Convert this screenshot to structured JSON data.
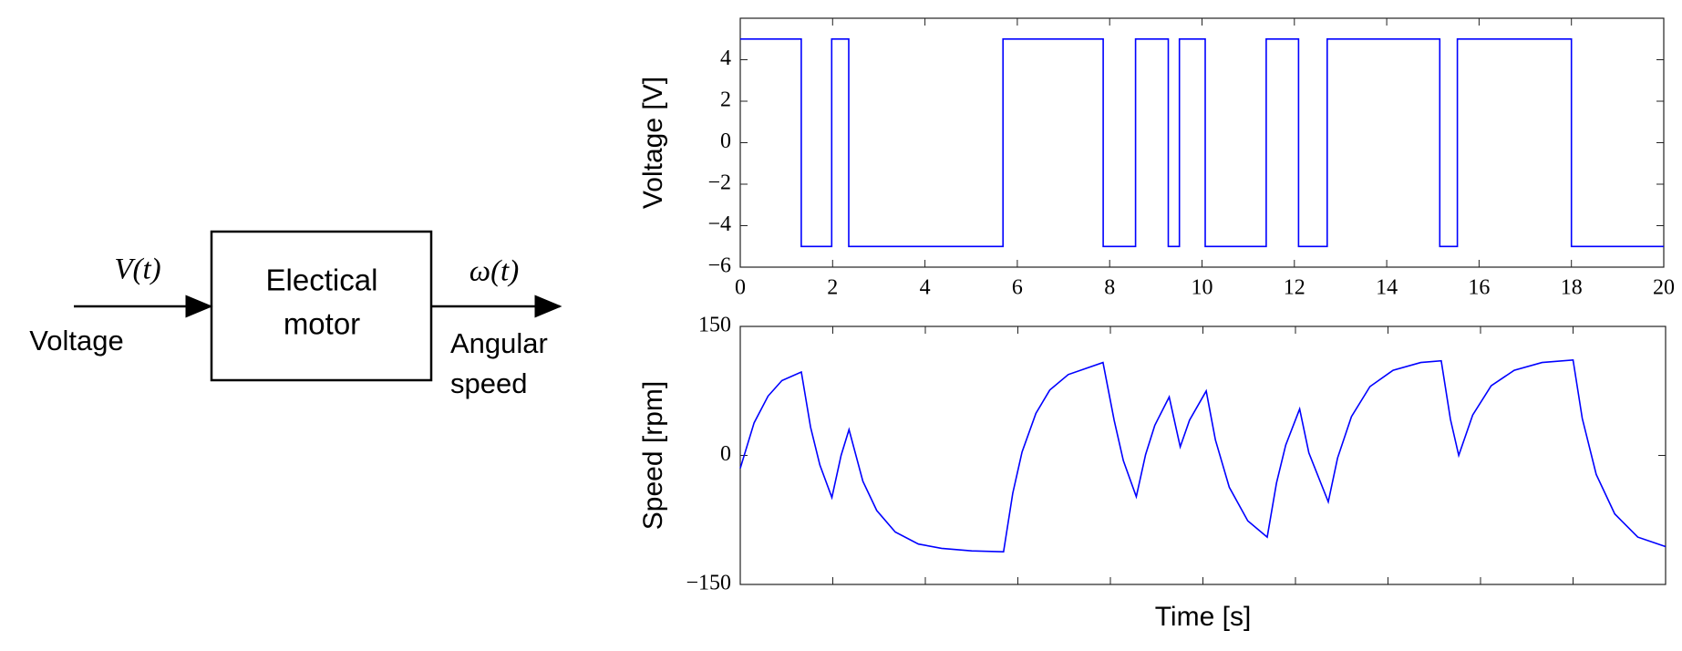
{
  "diagram": {
    "block_label": [
      "Electical",
      "motor"
    ],
    "input_signal": "V(t)",
    "input_label": "Voltage",
    "output_signal": "ω(t)",
    "output_label": [
      "Angular",
      "speed"
    ]
  },
  "chart_data": [
    {
      "type": "line",
      "ylabel": "Voltage [V]",
      "color": "#0000ff",
      "x": [
        0,
        1.32,
        1.32,
        1.98,
        1.98,
        2.35,
        2.35,
        5.69,
        5.69,
        7.86,
        7.86,
        8.56,
        8.56,
        9.27,
        9.27,
        9.51,
        9.51,
        10.07,
        10.07,
        11.39,
        11.39,
        12.09,
        12.09,
        12.71,
        12.71,
        15.15,
        15.15,
        15.53,
        15.53,
        18.0,
        18.0,
        20
      ],
      "values": [
        5,
        5,
        -5,
        -5,
        5,
        5,
        -5,
        -5,
        5,
        5,
        -5,
        -5,
        5,
        5,
        -5,
        -5,
        5,
        5,
        -5,
        -5,
        5,
        5,
        -5,
        -5,
        5,
        5,
        -5,
        -5,
        5,
        5,
        -5,
        -5
      ],
      "xlim": [
        0,
        20
      ],
      "xticks": [
        0,
        2,
        4,
        6,
        8,
        10,
        12,
        14,
        16,
        18,
        20
      ],
      "show_xtick_labels": true,
      "ylim": [
        -6,
        6
      ],
      "yticks": [
        {
          "value": -6,
          "label": "−6"
        },
        {
          "value": -4,
          "label": "−4"
        },
        {
          "value": -2,
          "label": "−2"
        },
        0,
        2,
        4
      ]
    },
    {
      "type": "line",
      "ylabel": "Speed [rpm]",
      "xlabel": "Time [s]",
      "color": "#0000ff",
      "x": [
        0,
        0.3,
        0.6,
        0.9,
        1.32,
        1.52,
        1.72,
        1.98,
        2.18,
        2.35,
        2.65,
        2.95,
        3.35,
        3.85,
        4.35,
        5.0,
        5.69,
        5.89,
        6.09,
        6.39,
        6.69,
        7.09,
        7.84,
        8.08,
        8.28,
        8.56,
        8.76,
        8.96,
        9.27,
        9.51,
        9.71,
        10.07,
        10.27,
        10.57,
        10.97,
        11.39,
        11.59,
        11.79,
        12.09,
        12.29,
        12.71,
        12.91,
        13.21,
        13.61,
        14.11,
        14.71,
        15.15,
        15.35,
        15.53,
        15.83,
        16.23,
        16.73,
        17.33,
        18.0,
        18.2,
        18.5,
        18.9,
        19.4,
        20.0
      ],
      "values": [
        -15,
        38,
        69,
        87,
        97,
        33,
        -11,
        -49,
        0,
        30,
        -30,
        -64,
        -89,
        -103,
        -108,
        -111,
        -112,
        -44,
        4,
        49,
        76,
        94,
        108,
        41,
        -6,
        -48,
        1,
        35,
        68,
        10,
        41,
        75,
        18,
        -37,
        -76,
        -95,
        -32,
        12,
        54,
        3,
        -54,
        -3,
        45,
        80,
        99,
        108,
        110,
        42,
        0,
        47,
        81,
        99,
        108,
        111,
        43,
        -22,
        -68,
        -95,
        -106
      ],
      "xlim": [
        0,
        20
      ],
      "xticks": [
        0,
        2,
        4,
        6,
        8,
        10,
        12,
        14,
        16,
        18,
        20
      ],
      "show_xtick_labels": false,
      "ylim": [
        -150,
        150
      ],
      "yticks": [
        {
          "value": -150,
          "label": "−150"
        },
        0,
        150
      ]
    }
  ]
}
